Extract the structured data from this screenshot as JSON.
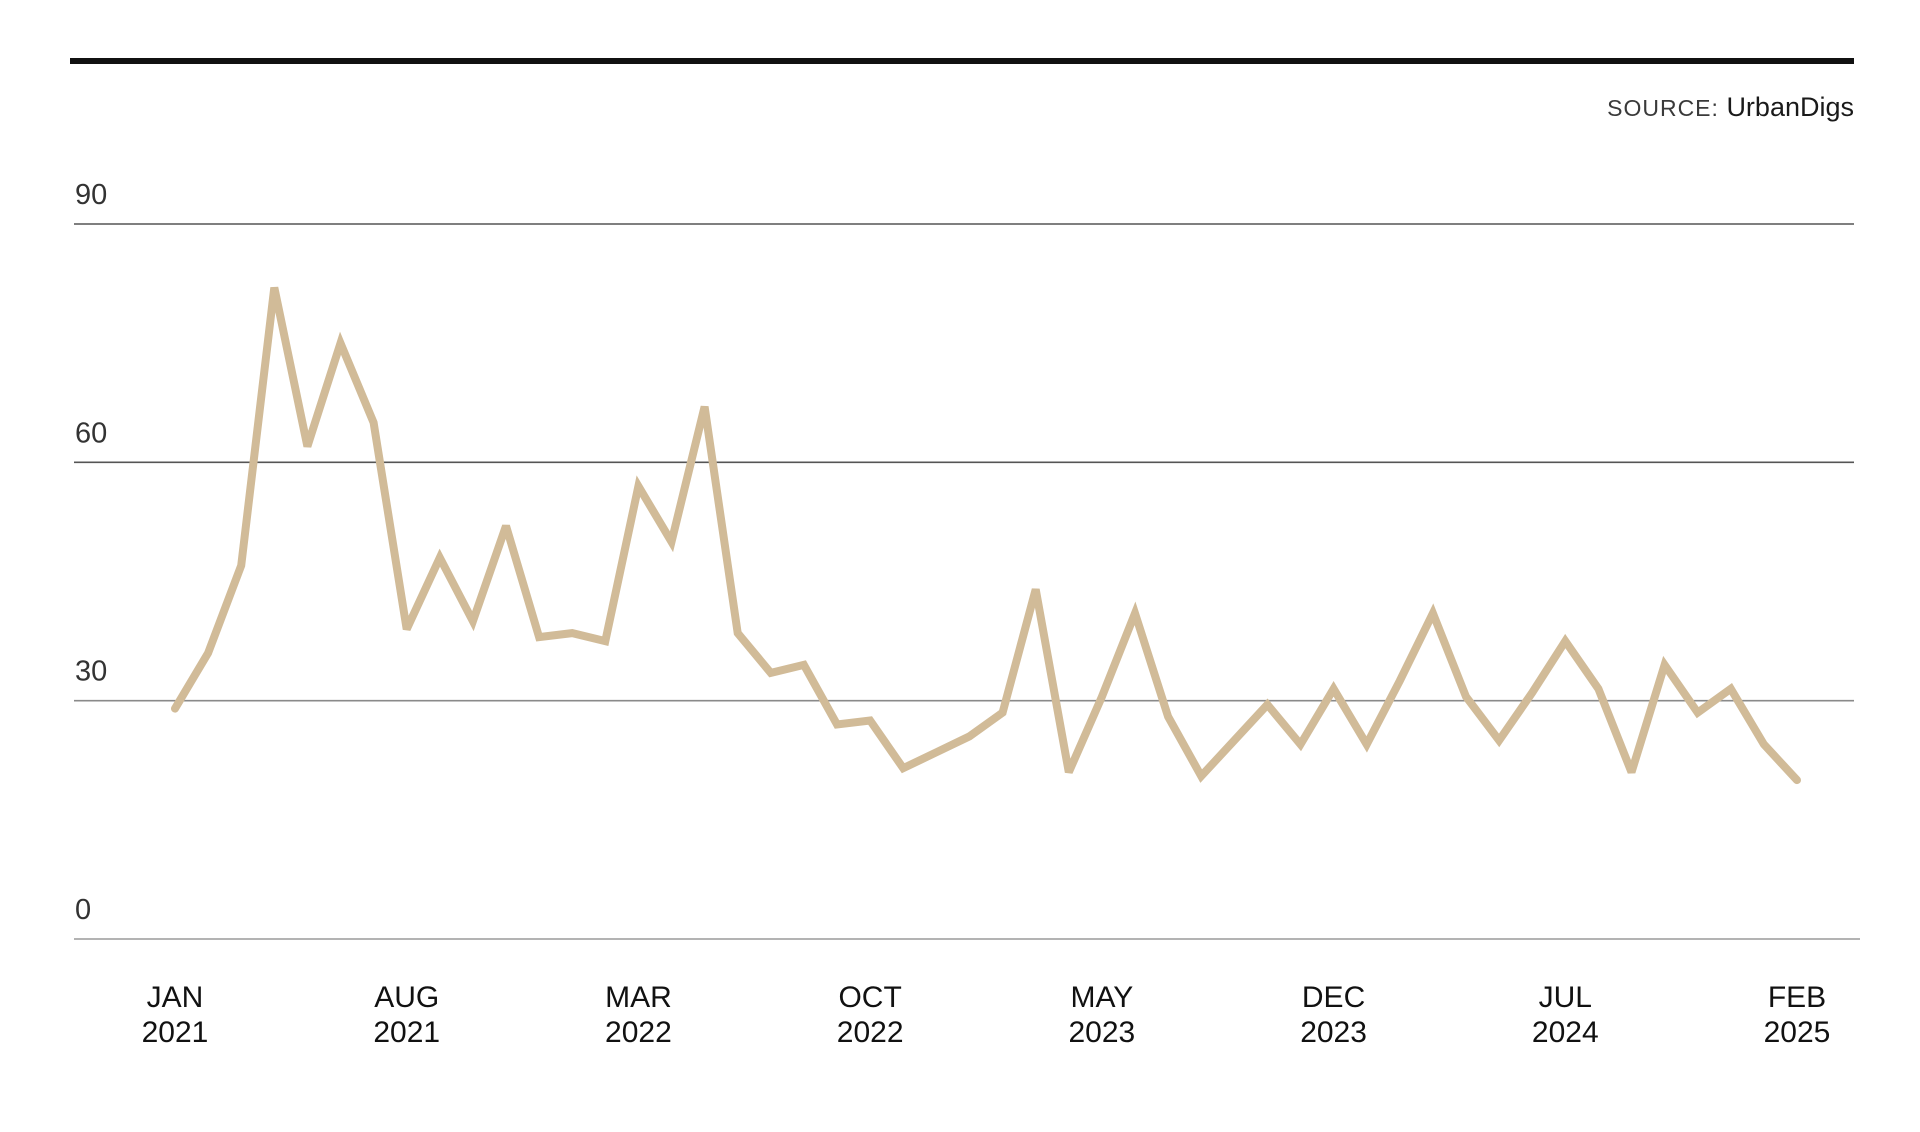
{
  "source": {
    "label": "SOURCE:",
    "name": "UrbanDigs"
  },
  "chart_data": {
    "type": "line",
    "title": "",
    "xlabel": "",
    "ylabel": "",
    "ylim": [
      0,
      90
    ],
    "yticks": [
      "0",
      "30",
      "60",
      "90"
    ],
    "grid": true,
    "x_tick_labels": [
      {
        "month": "JAN",
        "year": "2021",
        "index": 0
      },
      {
        "month": "AUG",
        "year": "2021",
        "index": 7
      },
      {
        "month": "MAR",
        "year": "2022",
        "index": 14
      },
      {
        "month": "OCT",
        "year": "2022",
        "index": 21
      },
      {
        "month": "MAY",
        "year": "2023",
        "index": 28
      },
      {
        "month": "DEC",
        "year": "2023",
        "index": 35
      },
      {
        "month": "JUL",
        "year": "2024",
        "index": 42
      },
      {
        "month": "FEB",
        "year": "2025",
        "index": 49
      }
    ],
    "x": [
      "2021-01",
      "2021-02",
      "2021-03",
      "2021-04",
      "2021-05",
      "2021-06",
      "2021-07",
      "2021-08",
      "2021-09",
      "2021-10",
      "2021-11",
      "2021-12",
      "2022-01",
      "2022-02",
      "2022-03",
      "2022-04",
      "2022-05",
      "2022-06",
      "2022-07",
      "2022-08",
      "2022-09",
      "2022-10",
      "2022-11",
      "2022-12",
      "2023-01",
      "2023-02",
      "2023-03",
      "2023-04",
      "2023-05",
      "2023-06",
      "2023-07",
      "2023-08",
      "2023-09",
      "2023-10",
      "2023-11",
      "2023-12",
      "2024-01",
      "2024-02",
      "2024-03",
      "2024-04",
      "2024-05",
      "2024-06",
      "2024-07",
      "2024-08",
      "2024-09",
      "2024-10",
      "2024-11",
      "2024-12",
      "2025-01",
      "2025-02"
    ],
    "series": [
      {
        "color": "#d1bb98",
        "values": [
          29,
          36,
          47,
          82,
          62,
          75,
          65,
          39,
          48,
          40,
          52,
          38,
          38.5,
          37.5,
          57,
          50,
          67,
          38.5,
          33.5,
          34.5,
          27,
          27.5,
          21.5,
          23.5,
          25.5,
          28.5,
          44,
          21,
          30.5,
          41,
          28,
          20.5,
          25,
          29.5,
          24.5,
          31.5,
          24.5,
          32.5,
          41,
          30.5,
          25,
          31,
          37.5,
          31.5,
          21,
          34.5,
          28.5,
          31.5,
          24.5,
          20
        ]
      }
    ]
  }
}
